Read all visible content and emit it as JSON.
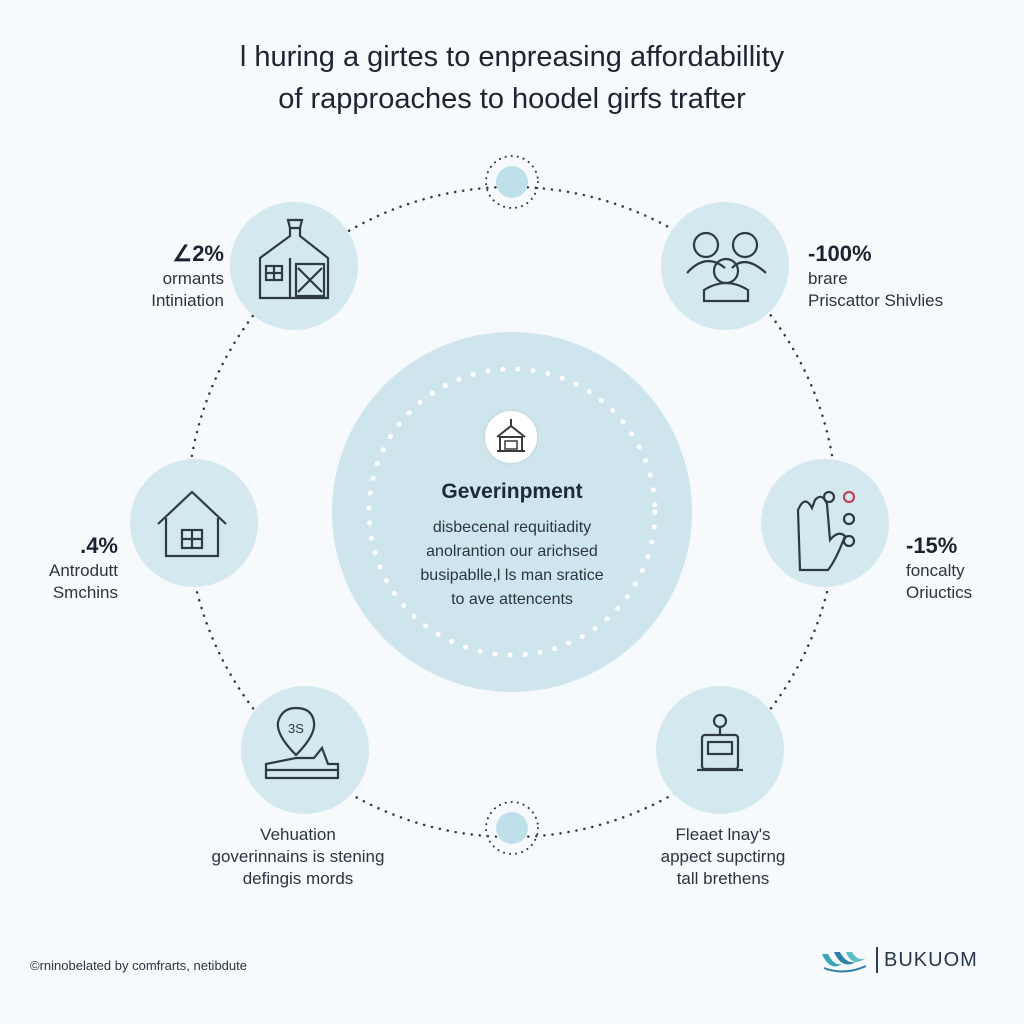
{
  "title": {
    "line1": "l huring a girtes to enpreasing affordabillity",
    "line2": "of rapproaches to hoodel girfs trafter"
  },
  "center": {
    "title": "Geverinpment",
    "body": [
      "disbecenal requitiadity",
      "anolrantion our arichsed",
      "busipablle,l ls man sratice",
      "to ave attencents"
    ]
  },
  "nodes": [
    {
      "id": "top-left",
      "percent": "∠2%",
      "lines": [
        "ormants",
        "Intiniation"
      ],
      "icon": "house-building-icon"
    },
    {
      "id": "top-right",
      "percent": "-100%",
      "lines": [
        "brare",
        "Priscattor Shivlies"
      ],
      "icon": "people-group-icon"
    },
    {
      "id": "middle-left",
      "percent": ".4%",
      "lines": [
        "Antrodutt",
        "Smchins"
      ],
      "icon": "home-icon"
    },
    {
      "id": "middle-right",
      "percent": "-15%",
      "lines": [
        "foncalty",
        "Oriuctics"
      ],
      "icon": "hand-buttons-icon"
    },
    {
      "id": "bottom-left",
      "percent": "",
      "lines": [
        "Vehuation",
        "goverinnains is stening",
        "defingis mords"
      ],
      "icon": "price-tag-icon"
    },
    {
      "id": "bottom-right",
      "percent": "",
      "lines": [
        "Fleaet lnay's",
        "appect supctirng",
        "tall brethens"
      ],
      "icon": "device-icon"
    }
  ],
  "center_icon": "government-building-icon",
  "colors": {
    "circle_fill": "#d3e8ef",
    "center_fill": "#cfe5ee",
    "line": "#2e3a44"
  },
  "footer": "©rninobelated by comfrarts, netibdute",
  "brand": {
    "name": "BUKUOM",
    "logo": "wave-logo-icon"
  }
}
